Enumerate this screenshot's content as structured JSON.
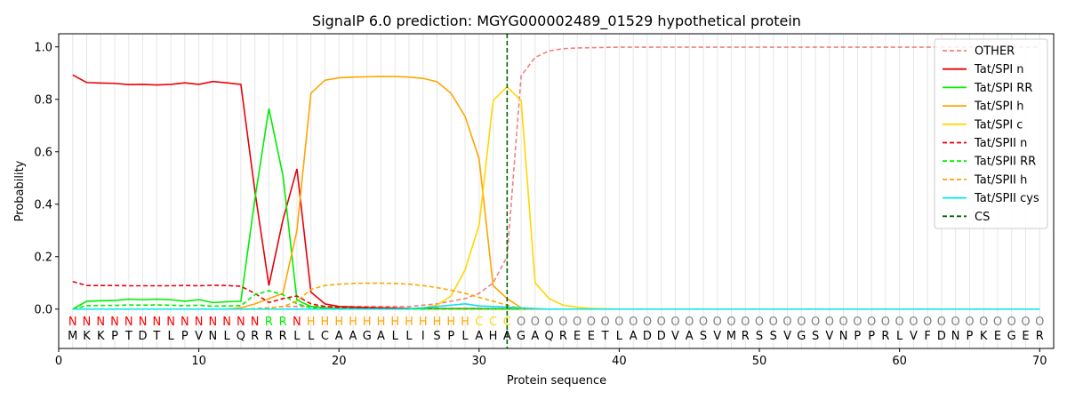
{
  "chart_data": {
    "type": "line",
    "title": "SignalP 6.0 prediction: MGYG000002489_01529 hypothetical protein",
    "xlabel": "Protein sequence",
    "ylabel": "Probability",
    "xlim": [
      0,
      71
    ],
    "ylim": [
      -0.15,
      1.05
    ],
    "x_ticks": [
      0,
      10,
      20,
      30,
      40,
      50,
      60,
      70
    ],
    "y_ticks": [
      0.0,
      0.2,
      0.4,
      0.6,
      0.8,
      1.0
    ],
    "grid": "vertical lines at each residue",
    "legend_position": "top-right",
    "sequence": [
      "M",
      "K",
      "K",
      "P",
      "T",
      "D",
      "T",
      "L",
      "P",
      "V",
      "N",
      "L",
      "Q",
      "R",
      "R",
      "R",
      "L",
      "L",
      "C",
      "A",
      "A",
      "G",
      "A",
      "L",
      "L",
      "I",
      "S",
      "P",
      "L",
      "A",
      "H",
      "A",
      "G",
      "A",
      "Q",
      "R",
      "E",
      "E",
      "T",
      "L",
      "A",
      "D",
      "D",
      "V",
      "A",
      "S",
      "V",
      "M",
      "R",
      "S",
      "S",
      "V",
      "G",
      "S",
      "V",
      "N",
      "P",
      "P",
      "R",
      "L",
      "V",
      "F",
      "D",
      "N",
      "P",
      "K",
      "E",
      "G",
      "E",
      "R"
    ],
    "labels": [
      "N",
      "N",
      "N",
      "N",
      "N",
      "N",
      "N",
      "N",
      "N",
      "N",
      "N",
      "N",
      "N",
      "N",
      "R",
      "R",
      "N",
      "H",
      "H",
      "H",
      "H",
      "H",
      "H",
      "H",
      "H",
      "H",
      "H",
      "H",
      "H",
      "C",
      "C",
      "C",
      "O",
      "O",
      "O",
      "O",
      "O",
      "O",
      "O",
      "O",
      "O",
      "O",
      "O",
      "O",
      "O",
      "O",
      "O",
      "O",
      "O",
      "O",
      "O",
      "O",
      "O",
      "O",
      "O",
      "O",
      "O",
      "O",
      "O",
      "O",
      "O",
      "O",
      "O",
      "O",
      "O",
      "O",
      "O",
      "O",
      "O",
      "O"
    ],
    "label_colors": {
      "N": "#ff0000",
      "R": "#00ee00",
      "H": "#ffa500",
      "C": "#ffd700",
      "O": "#808080"
    },
    "cs_position": 32,
    "series": [
      {
        "name": "OTHER",
        "color": "#f08080",
        "dash": true,
        "values": [
          0.0,
          0.0,
          0.0,
          0.0,
          0.0,
          0.0,
          0.0,
          0.0,
          0.0,
          0.0,
          0.0,
          0.0,
          0.0,
          0.0,
          0.005,
          0.01,
          0.01,
          0.01,
          0.01,
          0.01,
          0.01,
          0.01,
          0.01,
          0.01,
          0.01,
          0.015,
          0.02,
          0.03,
          0.04,
          0.06,
          0.1,
          0.2,
          0.89,
          0.96,
          0.985,
          0.993,
          0.996,
          0.997,
          0.998,
          0.999,
          0.999,
          0.999,
          0.999,
          0.999,
          0.999,
          0.999,
          0.999,
          0.999,
          0.999,
          0.999,
          0.999,
          0.999,
          0.999,
          0.999,
          0.999,
          0.999,
          0.999,
          0.999,
          0.999,
          0.999,
          0.999,
          0.999,
          0.999,
          0.999,
          0.999,
          0.999,
          0.999,
          0.999,
          0.999,
          0.999
        ]
      },
      {
        "name": "Tat/SPI n",
        "color": "#e8000b",
        "dash": false,
        "values": [
          0.893,
          0.864,
          0.862,
          0.861,
          0.856,
          0.857,
          0.855,
          0.857,
          0.863,
          0.857,
          0.868,
          0.863,
          0.857,
          0.45,
          0.09,
          0.34,
          0.535,
          0.065,
          0.02,
          0.01,
          0.008,
          0.006,
          0.005,
          0.004,
          0.003,
          0.003,
          0.002,
          0.002,
          0.002,
          0.002,
          0.001,
          0.001,
          0.0,
          0.0,
          0.0,
          0.0,
          0.0,
          0.0,
          0.0,
          0.0,
          0.0,
          0.0,
          0.0,
          0.0,
          0.0,
          0.0,
          0.0,
          0.0,
          0.0,
          0.0,
          0.0,
          0.0,
          0.0,
          0.0,
          0.0,
          0.0,
          0.0,
          0.0,
          0.0,
          0.0,
          0.0,
          0.0,
          0.0,
          0.0,
          0.0,
          0.0,
          0.0,
          0.0,
          0.0,
          0.0
        ]
      },
      {
        "name": "Tat/SPI RR",
        "color": "#00ee00",
        "dash": false,
        "values": [
          0.0,
          0.03,
          0.032,
          0.033,
          0.038,
          0.036,
          0.038,
          0.036,
          0.03,
          0.036,
          0.025,
          0.028,
          0.03,
          0.42,
          0.765,
          0.51,
          0.035,
          0.01,
          0.005,
          0.003,
          0.002,
          0.002,
          0.001,
          0.001,
          0.001,
          0.001,
          0.001,
          0.001,
          0.001,
          0.001,
          0.001,
          0.0,
          0.0,
          0.0,
          0.0,
          0.0,
          0.0,
          0.0,
          0.0,
          0.0,
          0.0,
          0.0,
          0.0,
          0.0,
          0.0,
          0.0,
          0.0,
          0.0,
          0.0,
          0.0,
          0.0,
          0.0,
          0.0,
          0.0,
          0.0,
          0.0,
          0.0,
          0.0,
          0.0,
          0.0,
          0.0,
          0.0,
          0.0,
          0.0,
          0.0,
          0.0,
          0.0,
          0.0,
          0.0,
          0.0
        ]
      },
      {
        "name": "Tat/SPI h",
        "color": "#ffa500",
        "dash": false,
        "values": [
          0.0,
          0.0,
          0.0,
          0.0,
          0.0,
          0.0,
          0.0,
          0.0,
          0.0,
          0.0,
          0.0,
          0.0,
          0.005,
          0.02,
          0.04,
          0.06,
          0.3,
          0.823,
          0.873,
          0.882,
          0.885,
          0.886,
          0.887,
          0.887,
          0.885,
          0.88,
          0.867,
          0.823,
          0.735,
          0.573,
          0.09,
          0.04,
          0.005,
          0.0,
          0.0,
          0.0,
          0.0,
          0.0,
          0.0,
          0.0,
          0.0,
          0.0,
          0.0,
          0.0,
          0.0,
          0.0,
          0.0,
          0.0,
          0.0,
          0.0,
          0.0,
          0.0,
          0.0,
          0.0,
          0.0,
          0.0,
          0.0,
          0.0,
          0.0,
          0.0,
          0.0,
          0.0,
          0.0,
          0.0,
          0.0,
          0.0,
          0.0,
          0.0,
          0.0,
          0.0
        ]
      },
      {
        "name": "Tat/SPI c",
        "color": "#ffd700",
        "dash": false,
        "values": [
          0.0,
          0.0,
          0.0,
          0.0,
          0.0,
          0.0,
          0.0,
          0.0,
          0.0,
          0.0,
          0.0,
          0.0,
          0.0,
          0.0,
          0.0,
          0.0,
          0.0,
          0.0,
          0.0,
          0.0,
          0.0,
          0.0,
          0.0,
          0.0,
          0.002,
          0.005,
          0.015,
          0.05,
          0.15,
          0.32,
          0.795,
          0.848,
          0.795,
          0.1,
          0.04,
          0.015,
          0.007,
          0.003,
          0.001,
          0.0,
          0.0,
          0.0,
          0.0,
          0.0,
          0.0,
          0.0,
          0.0,
          0.0,
          0.0,
          0.0,
          0.0,
          0.0,
          0.0,
          0.0,
          0.0,
          0.0,
          0.0,
          0.0,
          0.0,
          0.0,
          0.0,
          0.0,
          0.0,
          0.0,
          0.0,
          0.0,
          0.0,
          0.0,
          0.0,
          0.0
        ]
      },
      {
        "name": "Tat/SPII n",
        "color": "#e8000b",
        "dash": true,
        "values": [
          0.105,
          0.09,
          0.09,
          0.09,
          0.089,
          0.089,
          0.089,
          0.089,
          0.09,
          0.089,
          0.091,
          0.09,
          0.087,
          0.06,
          0.025,
          0.04,
          0.05,
          0.02,
          0.01,
          0.007,
          0.005,
          0.004,
          0.003,
          0.003,
          0.002,
          0.002,
          0.002,
          0.001,
          0.001,
          0.001,
          0.001,
          0.0,
          0.0,
          0.0,
          0.0,
          0.0,
          0.0,
          0.0,
          0.0,
          0.0,
          0.0,
          0.0,
          0.0,
          0.0,
          0.0,
          0.0,
          0.0,
          0.0,
          0.0,
          0.0,
          0.0,
          0.0,
          0.0,
          0.0,
          0.0,
          0.0,
          0.0,
          0.0,
          0.0,
          0.0,
          0.0,
          0.0,
          0.0,
          0.0,
          0.0,
          0.0,
          0.0,
          0.0,
          0.0,
          0.0
        ]
      },
      {
        "name": "Tat/SPII RR",
        "color": "#00ee00",
        "dash": true,
        "values": [
          0.0,
          0.013,
          0.014,
          0.014,
          0.016,
          0.015,
          0.016,
          0.015,
          0.013,
          0.015,
          0.011,
          0.012,
          0.013,
          0.055,
          0.07,
          0.055,
          0.02,
          0.005,
          0.002,
          0.001,
          0.001,
          0.0,
          0.0,
          0.0,
          0.0,
          0.0,
          0.0,
          0.0,
          0.0,
          0.0,
          0.0,
          0.0,
          0.0,
          0.0,
          0.0,
          0.0,
          0.0,
          0.0,
          0.0,
          0.0,
          0.0,
          0.0,
          0.0,
          0.0,
          0.0,
          0.0,
          0.0,
          0.0,
          0.0,
          0.0,
          0.0,
          0.0,
          0.0,
          0.0,
          0.0,
          0.0,
          0.0,
          0.0,
          0.0,
          0.0,
          0.0,
          0.0,
          0.0,
          0.0,
          0.0,
          0.0,
          0.0,
          0.0,
          0.0,
          0.0
        ]
      },
      {
        "name": "Tat/SPII h",
        "color": "#ffa500",
        "dash": true,
        "values": [
          0.0,
          0.0,
          0.0,
          0.0,
          0.0,
          0.0,
          0.0,
          0.0,
          0.0,
          0.0,
          0.0,
          0.0,
          0.0,
          0.002,
          0.005,
          0.01,
          0.03,
          0.075,
          0.09,
          0.095,
          0.098,
          0.099,
          0.099,
          0.098,
          0.095,
          0.09,
          0.082,
          0.072,
          0.06,
          0.045,
          0.03,
          0.015,
          0.002,
          0.0,
          0.0,
          0.0,
          0.0,
          0.0,
          0.0,
          0.0,
          0.0,
          0.0,
          0.0,
          0.0,
          0.0,
          0.0,
          0.0,
          0.0,
          0.0,
          0.0,
          0.0,
          0.0,
          0.0,
          0.0,
          0.0,
          0.0,
          0.0,
          0.0,
          0.0,
          0.0,
          0.0,
          0.0,
          0.0,
          0.0,
          0.0,
          0.0,
          0.0,
          0.0,
          0.0,
          0.0
        ]
      },
      {
        "name": "Tat/SPII cys",
        "color": "#00e5ee",
        "dash": false,
        "values": [
          0.0,
          0.0,
          0.0,
          0.0,
          0.0,
          0.0,
          0.0,
          0.0,
          0.0,
          0.0,
          0.0,
          0.0,
          0.0,
          0.0,
          0.0,
          0.0,
          0.0,
          0.0,
          0.0,
          0.0,
          0.0,
          0.0,
          0.0,
          0.0,
          0.002,
          0.005,
          0.01,
          0.015,
          0.02,
          0.012,
          0.01,
          0.008,
          0.005,
          0.002,
          0.0,
          0.0,
          0.0,
          0.0,
          0.0,
          0.0,
          0.0,
          0.0,
          0.0,
          0.0,
          0.0,
          0.0,
          0.0,
          0.0,
          0.0,
          0.0,
          0.0,
          0.0,
          0.0,
          0.0,
          0.0,
          0.0,
          0.0,
          0.0,
          0.0,
          0.0,
          0.0,
          0.0,
          0.0,
          0.0,
          0.0,
          0.0,
          0.0,
          0.0,
          0.0,
          0.0
        ]
      }
    ],
    "cs_legend": {
      "name": "CS",
      "color": "#006400"
    }
  }
}
